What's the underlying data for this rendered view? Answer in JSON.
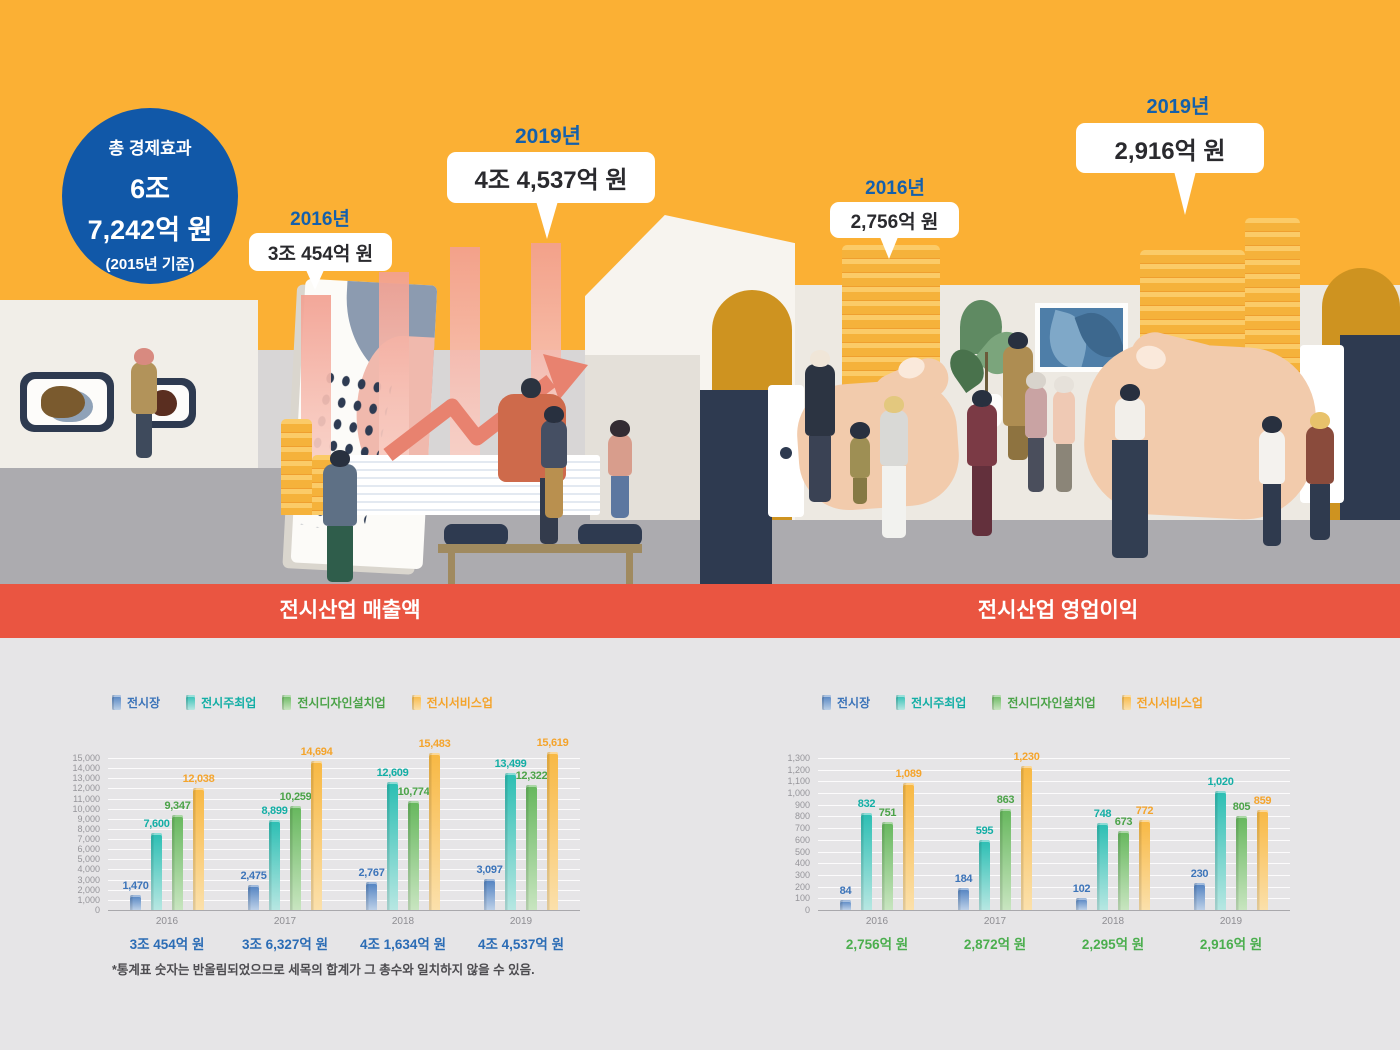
{
  "hero": {
    "badge": {
      "title": "총 경제효과",
      "value_line1": "6조",
      "value_line2": "7,242억 원",
      "caption": "(2015년 기준)",
      "bg_color": "#1158A8"
    },
    "callouts": [
      {
        "id": "sales-2016",
        "year": "2016년",
        "value": "3조 454억 원"
      },
      {
        "id": "sales-2019",
        "year": "2019년",
        "value": "4조 4,537억 원"
      },
      {
        "id": "profit-2016",
        "year": "2016년",
        "value": "2,756억 원"
      },
      {
        "id": "profit-2019",
        "year": "2019년",
        "value": "2,916억 원"
      }
    ],
    "year_color": "#1460AC"
  },
  "banner": {
    "bg_color": "#EA5541",
    "left_title": "전시산업 매출액",
    "right_title": "전시산업 영업이익"
  },
  "charts_footnote": "*통계표 숫자는 반올림되었으므로 세목의 합계가 그 총수와 일치하지 않을 수 있음.",
  "chart_data": [
    {
      "type": "bar",
      "title": "전시산업 매출액",
      "categories": [
        "2016",
        "2017",
        "2018",
        "2019"
      ],
      "series": [
        {
          "name": "전시장",
          "color": "#4F80C0",
          "light": "#BCD0E8",
          "text_color": "#3C74B9",
          "values": [
            1470,
            2475,
            2767,
            3097
          ]
        },
        {
          "name": "전시주최업",
          "color": "#2BBEB3",
          "light": "#B7E7E2",
          "text_color": "#13AEA5",
          "values": [
            7600,
            8899,
            12609,
            13499
          ]
        },
        {
          "name": "전시디자인설치업",
          "color": "#66B75D",
          "light": "#C8E5C0",
          "text_color": "#4BA348",
          "values": [
            9347,
            10259,
            10774,
            12322
          ]
        },
        {
          "name": "전시서비스업",
          "color": "#F8B843",
          "light": "#FBE0AB",
          "text_color": "#F4A42C",
          "values": [
            12038,
            14694,
            15483,
            15619
          ]
        }
      ],
      "totals": [
        "3조 454억 원",
        "3조 6,327억 원",
        "4조 1,634억 원",
        "4조 4,537억 원"
      ],
      "totals_color": "#2B6CB5",
      "ylim": [
        0,
        15000
      ],
      "ytick": 1000,
      "grid": true,
      "legend_position": "top-left"
    },
    {
      "type": "bar",
      "title": "전시산업 영업이익",
      "categories": [
        "2016",
        "2017",
        "2018",
        "2019"
      ],
      "series": [
        {
          "name": "전시장",
          "color": "#4F80C0",
          "light": "#BCD0E8",
          "text_color": "#3C74B9",
          "values": [
            84,
            184,
            102,
            230
          ]
        },
        {
          "name": "전시주최업",
          "color": "#2BBEB3",
          "light": "#B7E7E2",
          "text_color": "#13AEA5",
          "values": [
            832,
            595,
            748,
            1020
          ]
        },
        {
          "name": "전시디자인설치업",
          "color": "#66B75D",
          "light": "#C8E5C0",
          "text_color": "#4BA348",
          "values": [
            751,
            863,
            673,
            805
          ]
        },
        {
          "name": "전시서비스업",
          "color": "#F8B843",
          "light": "#FBE0AB",
          "text_color": "#F4A42C",
          "values": [
            1089,
            1230,
            772,
            859
          ]
        }
      ],
      "totals": [
        "2,756억 원",
        "2,872억 원",
        "2,295억 원",
        "2,916억 원"
      ],
      "totals_color": "#4BAE4E",
      "ylim": [
        0,
        1300
      ],
      "ytick": 100,
      "grid": true,
      "legend_position": "top-left"
    }
  ]
}
